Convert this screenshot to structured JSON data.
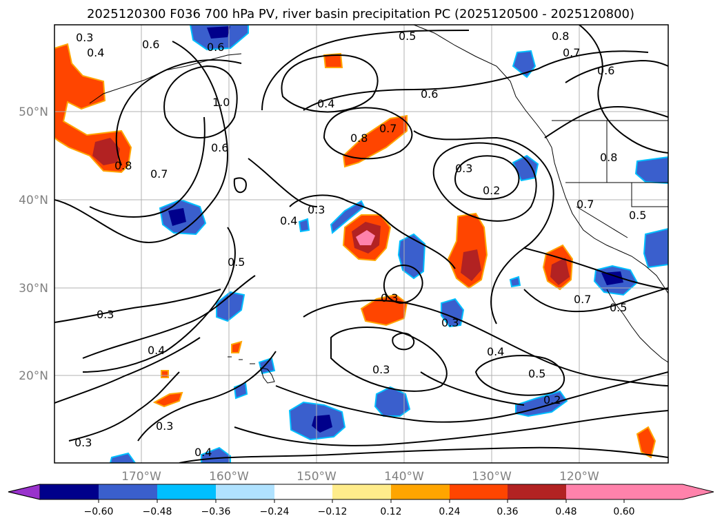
{
  "title": "2025120300 F036 700 hPa PV, river basin precipitation PC (2025120500 - 2025120800)",
  "lat_labels": [
    "50°N",
    "40°N",
    "30°N",
    "20°N"
  ],
  "lon_labels": [
    "170°W",
    "160°W",
    "150°W",
    "140°W",
    "130°W",
    "120°W"
  ],
  "colorbar": {
    "colors": [
      "#9932CC",
      "#00008B",
      "#3A5FCD",
      "#00BFFF",
      "#B0E2FF",
      "#FFFFFF",
      "#FFEC8B",
      "#FFA500",
      "#FF4500",
      "#B22222",
      "#FF82AB"
    ],
    "ticks": [
      "−0.60",
      "−0.48",
      "−0.36",
      "−0.24",
      "−0.12",
      "0.12",
      "0.24",
      "0.36",
      "0.48",
      "0.60"
    ]
  },
  "contour_labels": [
    "0.3",
    "0.4",
    "0.6",
    "0.6",
    "0.5",
    "0.8",
    "0.7",
    "0.6",
    "1.0",
    "0.6",
    "0.4",
    "0.8",
    "0.7",
    "0.6",
    "0.8",
    "0.7",
    "0.3",
    "0.2",
    "0.8",
    "0.7",
    "0.5",
    "0.4",
    "0.3",
    "0.5",
    "0.7",
    "0.5",
    "0.3",
    "0.3",
    "0.3",
    "0.4",
    "0.3",
    "0.4",
    "0.5",
    "0.2",
    "0.3",
    "0.4",
    "0.3"
  ]
}
